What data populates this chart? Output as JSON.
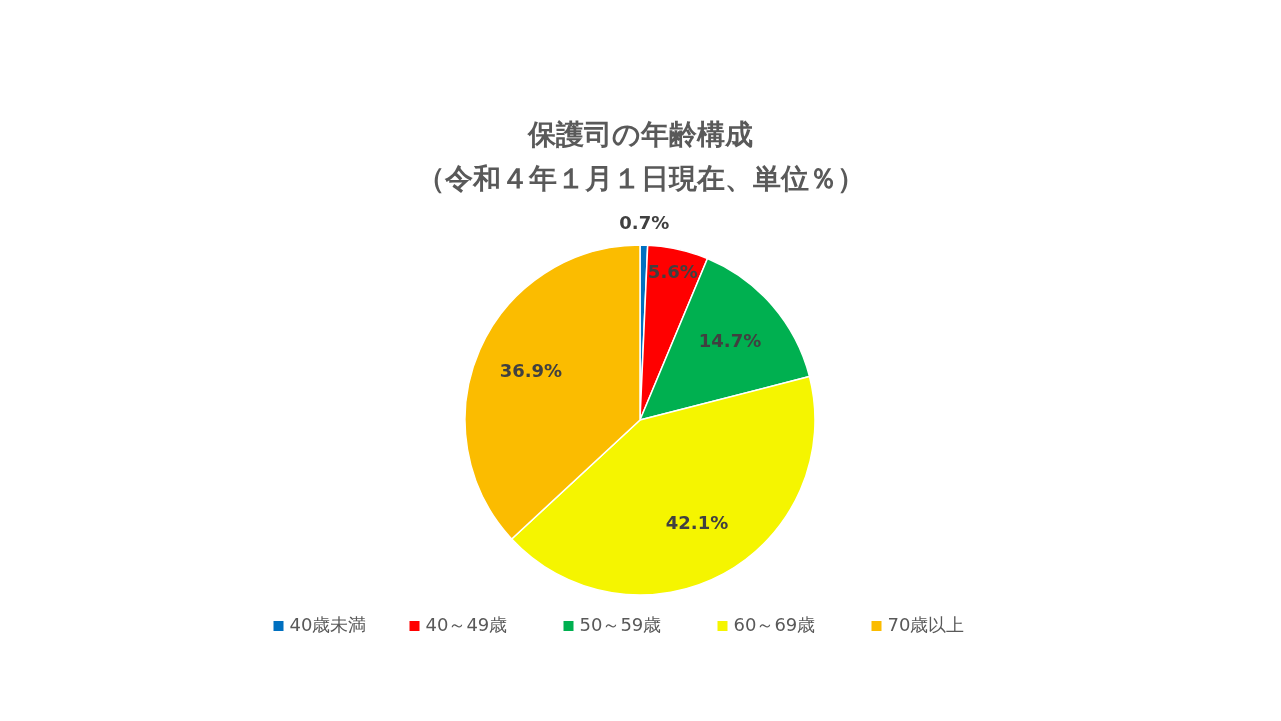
{
  "chart_data": {
    "type": "pie",
    "title": "保護司の年齢構成",
    "subtitle": "（令和４年１月１日現在、単位％）",
    "categories": [
      "40歳未満",
      "40～49歳",
      "50～59歳",
      "60～69歳",
      "70歳以上"
    ],
    "values": [
      0.7,
      5.6,
      14.7,
      42.1,
      36.9
    ],
    "colors": [
      "#0070c0",
      "#ff0000",
      "#00b050",
      "#f5f500",
      "#fbbc00"
    ],
    "value_labels": [
      "0.7%",
      "5.6%",
      "14.7%",
      "42.1%",
      "36.9%"
    ],
    "legend": "bottom"
  }
}
